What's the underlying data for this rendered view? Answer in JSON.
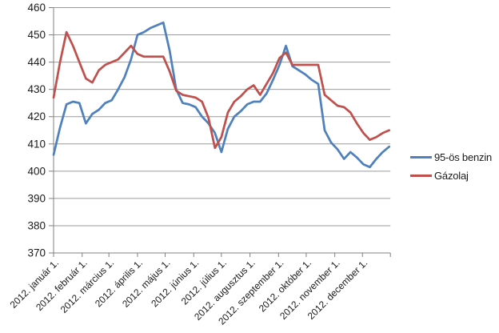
{
  "chart_data": {
    "type": "line",
    "title": "",
    "sampling": "weekly, 53 points from 2012-01-01 to 2012-12-30",
    "grid": true,
    "legend_position": "right",
    "y_axis": {
      "min": 370,
      "max": 460,
      "step": 10,
      "ticks": [
        370,
        380,
        390,
        400,
        410,
        420,
        430,
        440,
        450,
        460
      ]
    },
    "x_axis": {
      "tick_labels": [
        "2012. január 1.",
        "2012. február 1.",
        "2012. március 1.",
        "2012. április 1.",
        "2012. május 1.",
        "2012. június 1.",
        "2012. július 1.",
        "2012. augusztus 1.",
        "2012. szeptember 1.",
        "2012. október 1.",
        "2012. november 1.",
        "2012. december 1."
      ],
      "tick_week_positions": [
        0,
        4.4286,
        8.5714,
        13,
        17.2857,
        21.7143,
        26,
        30.4286,
        34.8571,
        39.1429,
        43.5714,
        47.8571
      ],
      "weeks_total": 52
    },
    "series": [
      {
        "name": "95-ös benzin",
        "color": "#4F81BD",
        "values": [
          406,
          416,
          424.5,
          425.5,
          425,
          417.5,
          421,
          422.5,
          425,
          426,
          430,
          434.5,
          441,
          450,
          451,
          452.5,
          453.5,
          454.5,
          444,
          430,
          425,
          424.5,
          423.5,
          420,
          417.5,
          414,
          407,
          415.5,
          420,
          422,
          424.5,
          425.5,
          425.5,
          428.5,
          433.5,
          439,
          446,
          438.5,
          437,
          435.5,
          433.5,
          432,
          415,
          410.5,
          408,
          404.5,
          407,
          405,
          402.5,
          401.5,
          404.5,
          407,
          409
        ]
      },
      {
        "name": "Gázolaj",
        "color": "#C0504D",
        "values": [
          427,
          440,
          451,
          446,
          440,
          434,
          432.5,
          437,
          439,
          440,
          441,
          443.5,
          446,
          443,
          442,
          442,
          442,
          442,
          436.5,
          429.5,
          428,
          427.5,
          427,
          425.5,
          419.5,
          408.5,
          412.5,
          421.5,
          425.5,
          427.5,
          430,
          431.5,
          428,
          432,
          436,
          441.5,
          443.5,
          439,
          439,
          439,
          439,
          439,
          428,
          426,
          424,
          423.5,
          421.5,
          417.5,
          414,
          411.5,
          412.5,
          414,
          415
        ]
      }
    ],
    "colors": {
      "gridline": "#9b9b9b",
      "axis": "#808080",
      "tick_label": "#1a1a1a"
    }
  }
}
